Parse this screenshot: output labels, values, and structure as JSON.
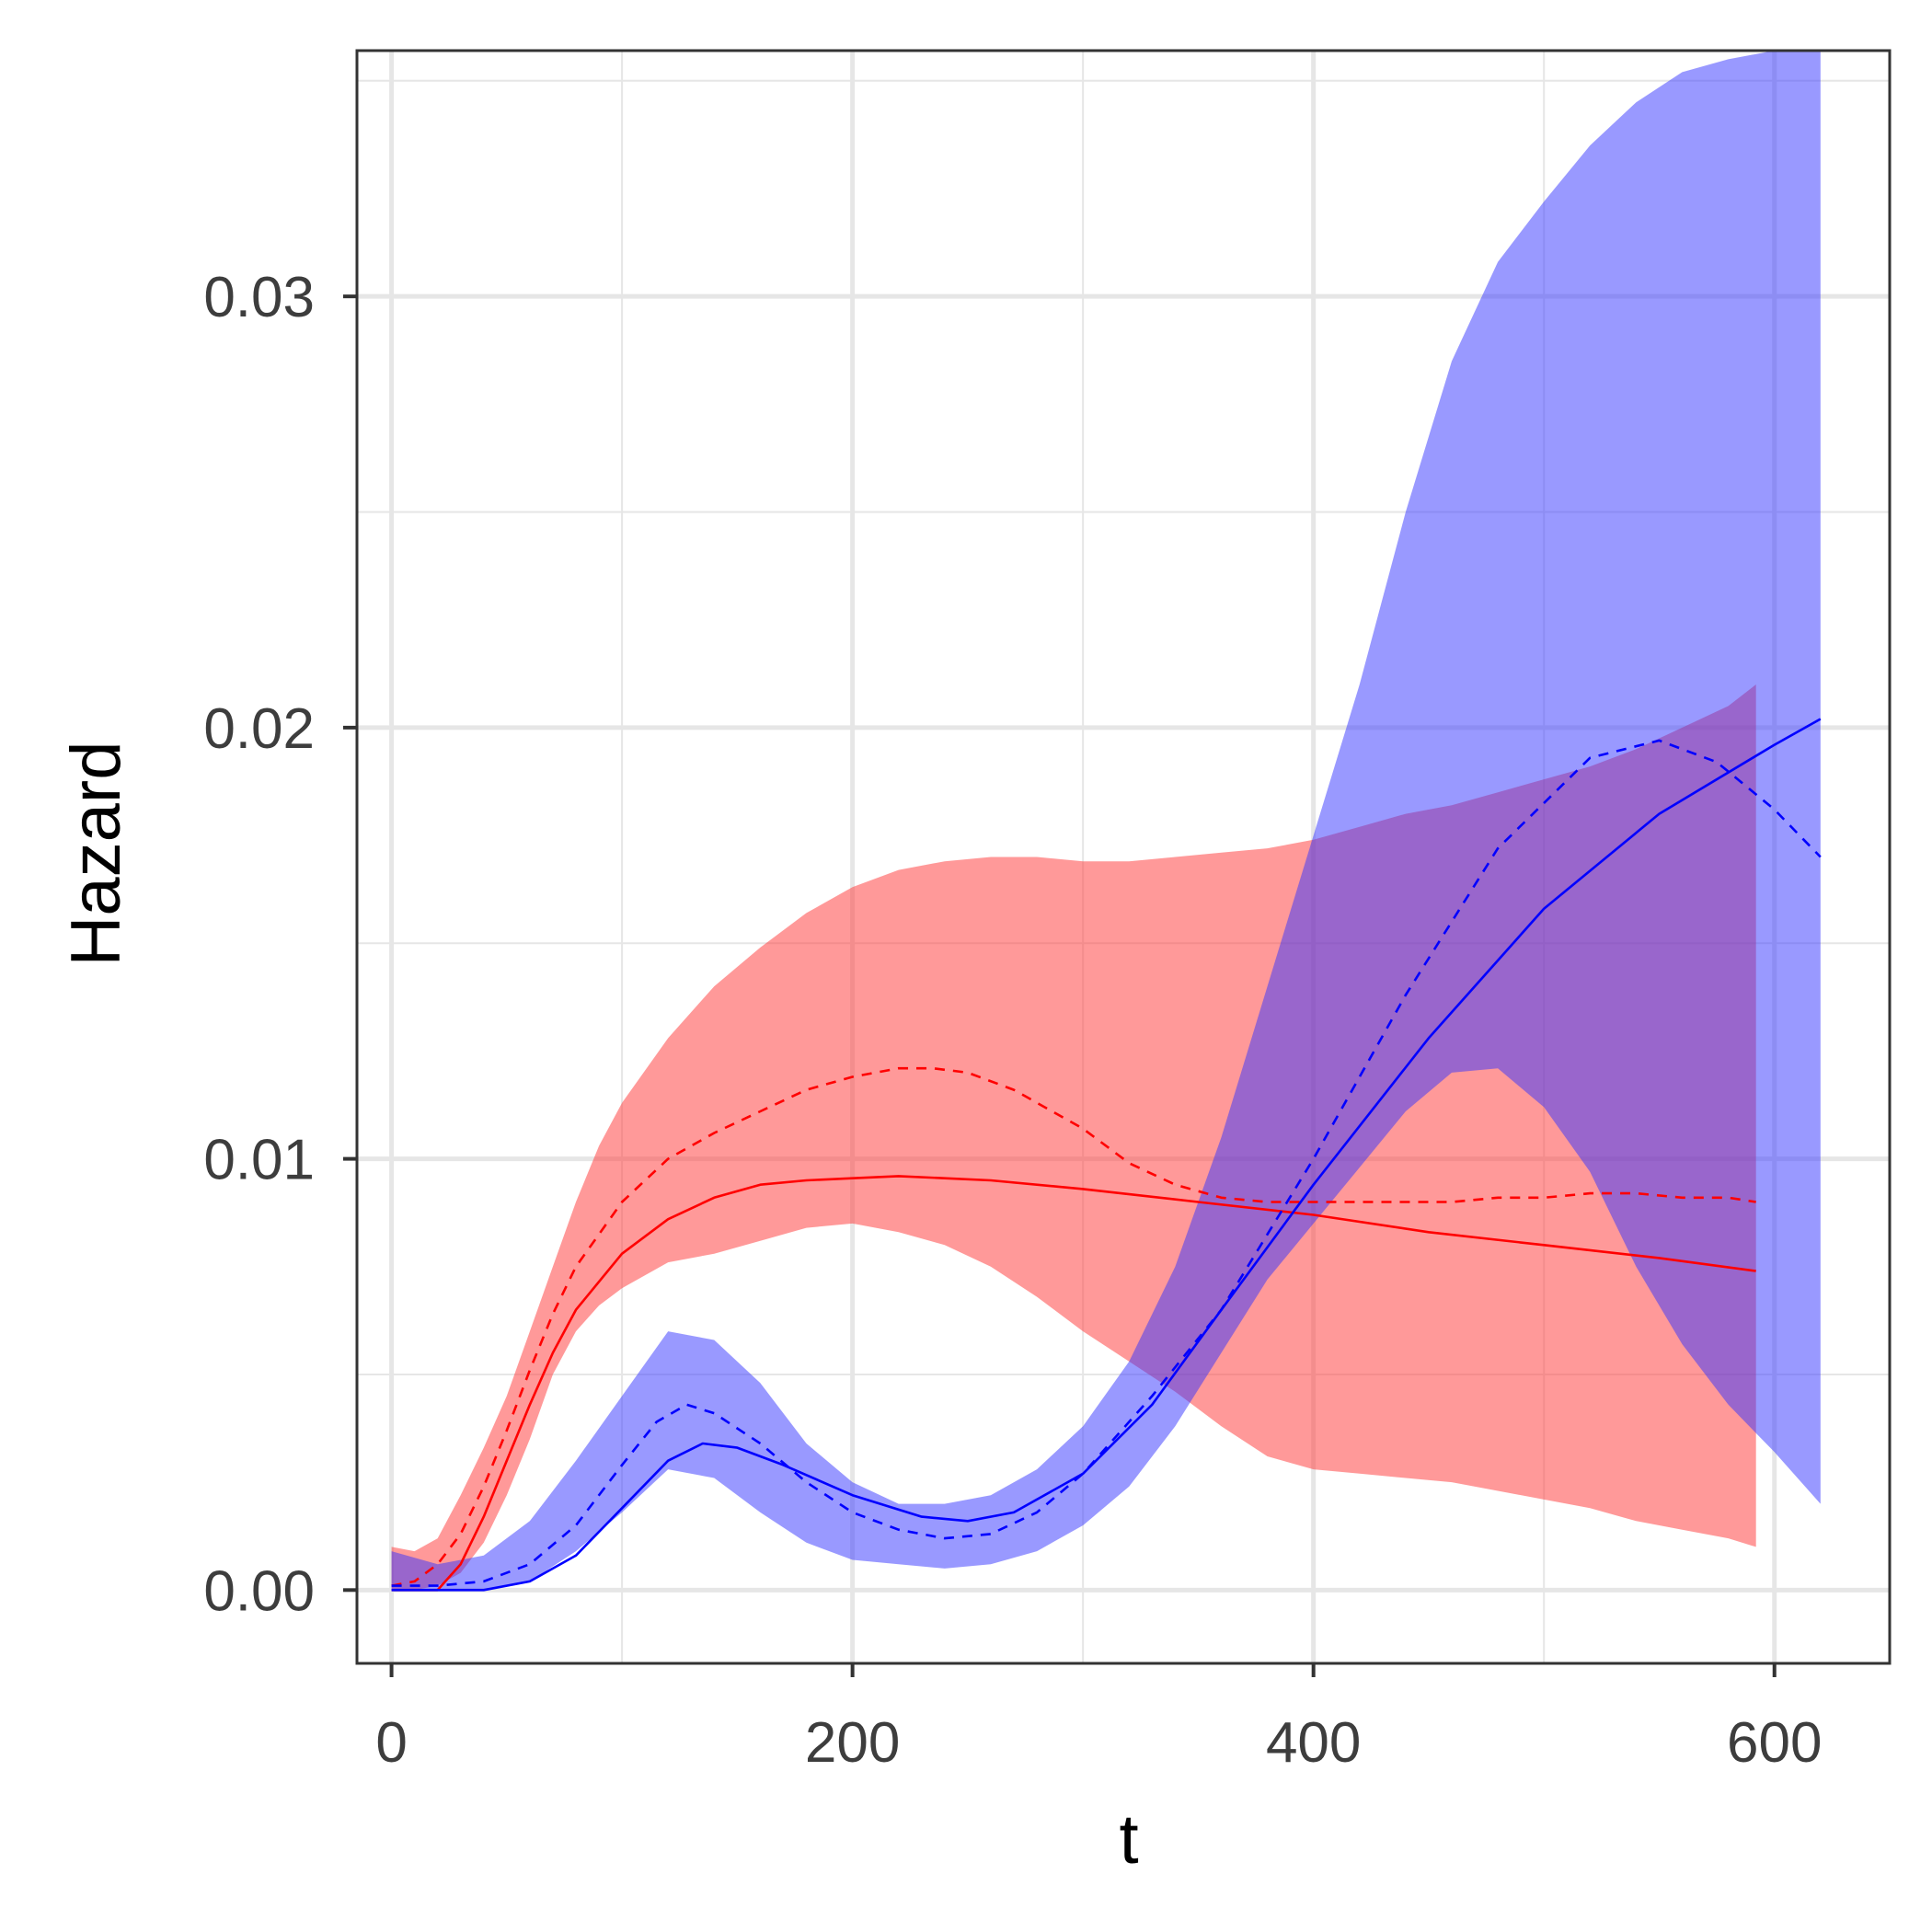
{
  "chart_data": {
    "type": "line",
    "title": "",
    "xlabel": "t",
    "ylabel": "Hazard",
    "xlim": [
      -15,
      650
    ],
    "ylim": [
      -0.0017,
      0.0357
    ],
    "x_ticks": [
      0,
      200,
      400,
      600
    ],
    "x_tick_labels": [
      "0",
      "200",
      "400",
      "600"
    ],
    "y_ticks": [
      0.0,
      0.01,
      0.02,
      0.03
    ],
    "y_tick_labels": [
      "0.00",
      "0.01",
      "0.02",
      "0.03"
    ],
    "x_minor_grid": [
      100,
      300,
      500
    ],
    "y_minor_grid": [
      0.005,
      0.015,
      0.025,
      0.035
    ],
    "grid": true,
    "legend": "none",
    "colors": {
      "red_line": "#ff0000",
      "red_band": "#ff3333",
      "blue_line": "#0000ff",
      "blue_band": "#3333ff",
      "grid": "#e6e6e6",
      "panel_border": "#333333",
      "tick_text": "#3d3d3d"
    },
    "series": [
      {
        "color": "red",
        "band": {
          "x": [
            0,
            10,
            20,
            30,
            40,
            50,
            60,
            70,
            80,
            90,
            100,
            120,
            140,
            160,
            180,
            200,
            220,
            240,
            260,
            280,
            300,
            320,
            340,
            360,
            380,
            400,
            420,
            440,
            460,
            480,
            500,
            520,
            540,
            560,
            580,
            592
          ],
          "upper": [
            0.001,
            0.0009,
            0.0012,
            0.0022,
            0.0033,
            0.0045,
            0.006,
            0.0075,
            0.009,
            0.0103,
            0.0113,
            0.0128,
            0.014,
            0.0149,
            0.0157,
            0.0163,
            0.0167,
            0.0169,
            0.017,
            0.017,
            0.0169,
            0.0169,
            0.017,
            0.0171,
            0.0172,
            0.0174,
            0.0177,
            0.018,
            0.0182,
            0.0185,
            0.0188,
            0.0191,
            0.0195,
            0.02,
            0.0205,
            0.021
          ],
          "lower": [
            0.0,
            0.0,
            0.0001,
            0.0004,
            0.0011,
            0.0022,
            0.0035,
            0.005,
            0.006,
            0.0066,
            0.007,
            0.0076,
            0.0078,
            0.0081,
            0.0084,
            0.0085,
            0.0083,
            0.008,
            0.0075,
            0.0068,
            0.006,
            0.0053,
            0.0046,
            0.0038,
            0.0031,
            0.0028,
            0.0027,
            0.0026,
            0.0025,
            0.0023,
            0.0021,
            0.0019,
            0.0016,
            0.0014,
            0.0012,
            0.001
          ]
        },
        "lines": [
          {
            "style": "solid",
            "x": [
              0,
              20,
              30,
              40,
              50,
              60,
              70,
              80,
              100,
              120,
              140,
              160,
              180,
              200,
              220,
              240,
              260,
              300,
              350,
              400,
              450,
              500,
              550,
              592
            ],
            "y": [
              0.0,
              0.0,
              0.0006,
              0.0017,
              0.003,
              0.0043,
              0.0055,
              0.0065,
              0.0078,
              0.0086,
              0.0091,
              0.0094,
              0.0095,
              0.00955,
              0.0096,
              0.00955,
              0.0095,
              0.0093,
              0.009,
              0.0087,
              0.0083,
              0.008,
              0.0077,
              0.0074
            ]
          },
          {
            "style": "dashed",
            "x": [
              0,
              10,
              20,
              30,
              40,
              50,
              60,
              70,
              80,
              100,
              120,
              140,
              160,
              180,
              200,
              220,
              235,
              250,
              270,
              300,
              320,
              340,
              360,
              380,
              400,
              420,
              440,
              460,
              480,
              500,
              520,
              540,
              560,
              580,
              592
            ],
            "y": [
              0.0001,
              0.0002,
              0.0006,
              0.0013,
              0.0024,
              0.0037,
              0.0051,
              0.0064,
              0.0075,
              0.009,
              0.01,
              0.0106,
              0.0111,
              0.0116,
              0.0119,
              0.0121,
              0.0121,
              0.012,
              0.0116,
              0.0107,
              0.0099,
              0.0094,
              0.0091,
              0.009,
              0.009,
              0.009,
              0.009,
              0.009,
              0.0091,
              0.0091,
              0.0092,
              0.0092,
              0.0091,
              0.0091,
              0.009
            ]
          }
        ]
      },
      {
        "color": "blue",
        "band": {
          "x": [
            0,
            20,
            40,
            60,
            80,
            100,
            120,
            140,
            160,
            180,
            200,
            220,
            240,
            260,
            280,
            300,
            320,
            340,
            360,
            380,
            400,
            420,
            440,
            460,
            480,
            500,
            520,
            540,
            560,
            580,
            600,
            620
          ],
          "upper": [
            0.0009,
            0.0006,
            0.0008,
            0.0016,
            0.003,
            0.0045,
            0.006,
            0.0058,
            0.0048,
            0.0034,
            0.0025,
            0.002,
            0.002,
            0.0022,
            0.0028,
            0.0038,
            0.0053,
            0.0075,
            0.0105,
            0.014,
            0.0175,
            0.021,
            0.025,
            0.0285,
            0.0308,
            0.0322,
            0.0335,
            0.0345,
            0.0352,
            0.0355,
            0.0357,
            0.0357
          ],
          "lower": [
            0.0,
            0.0,
            0.0,
            0.0002,
            0.0009,
            0.0018,
            0.0028,
            0.0026,
            0.0018,
            0.0011,
            0.0007,
            0.0006,
            0.0005,
            0.0006,
            0.0009,
            0.0015,
            0.0024,
            0.0038,
            0.0055,
            0.0072,
            0.0085,
            0.0098,
            0.0111,
            0.012,
            0.0121,
            0.0112,
            0.0097,
            0.0075,
            0.0057,
            0.0043,
            0.0032,
            0.002
          ]
        },
        "lines": [
          {
            "style": "solid",
            "x": [
              0,
              20,
              40,
              60,
              80,
              100,
              120,
              135,
              150,
              170,
              200,
              230,
              250,
              270,
              300,
              330,
              360,
              400,
              450,
              500,
              550,
              600,
              620
            ],
            "y": [
              0.0,
              0.0,
              0.0,
              0.0002,
              0.0008,
              0.0019,
              0.003,
              0.0034,
              0.0033,
              0.0029,
              0.0022,
              0.0017,
              0.0016,
              0.0018,
              0.0027,
              0.0043,
              0.0065,
              0.0094,
              0.0128,
              0.0158,
              0.018,
              0.0196,
              0.0202
            ]
          },
          {
            "style": "dashed",
            "x": [
              0,
              20,
              40,
              60,
              80,
              100,
              115,
              128,
              140,
              160,
              180,
              200,
              220,
              240,
              260,
              280,
              300,
              330,
              360,
              400,
              440,
              480,
              520,
              550,
              575,
              600,
              620
            ],
            "y": [
              0.0001,
              0.0001,
              0.0002,
              0.0006,
              0.0015,
              0.0029,
              0.0039,
              0.0043,
              0.0041,
              0.0034,
              0.0025,
              0.0018,
              0.0014,
              0.0012,
              0.0013,
              0.0018,
              0.0027,
              0.0045,
              0.0065,
              0.01,
              0.0138,
              0.0172,
              0.0193,
              0.0197,
              0.0192,
              0.0181,
              0.017
            ]
          }
        ]
      }
    ]
  }
}
